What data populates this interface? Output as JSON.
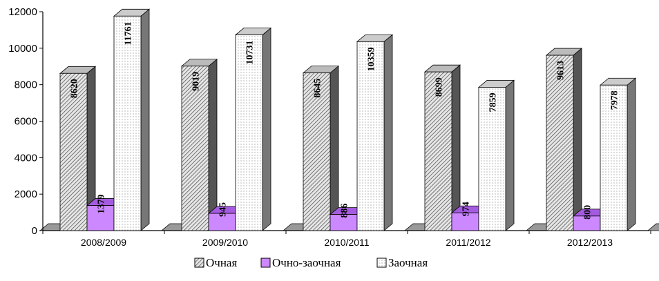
{
  "chart_data": {
    "type": "bar",
    "categories": [
      "2008/2009",
      "2009/2010",
      "2010/2011",
      "2011/2012",
      "2012/2013"
    ],
    "series": [
      {
        "name": "Очная",
        "values": [
          8620,
          9019,
          8645,
          8699,
          9613
        ],
        "pattern": "diagonal-hatch",
        "color": "#d0d0d0"
      },
      {
        "name": "Очно-заочная",
        "values": [
          1379,
          945,
          886,
          974,
          800
        ],
        "pattern": "solid",
        "color": "#cc88ff"
      },
      {
        "name": "Заочная",
        "values": [
          11761,
          10731,
          10359,
          7859,
          7978
        ],
        "pattern": "dots",
        "color": "#ffffff"
      }
    ],
    "ylim": [
      0,
      12000
    ],
    "yticks": [
      "0",
      "2000",
      "4000",
      "6000",
      "8000",
      "10000",
      "12000"
    ],
    "legend_position": "bottom",
    "grid": false,
    "style": "3d-columns"
  }
}
